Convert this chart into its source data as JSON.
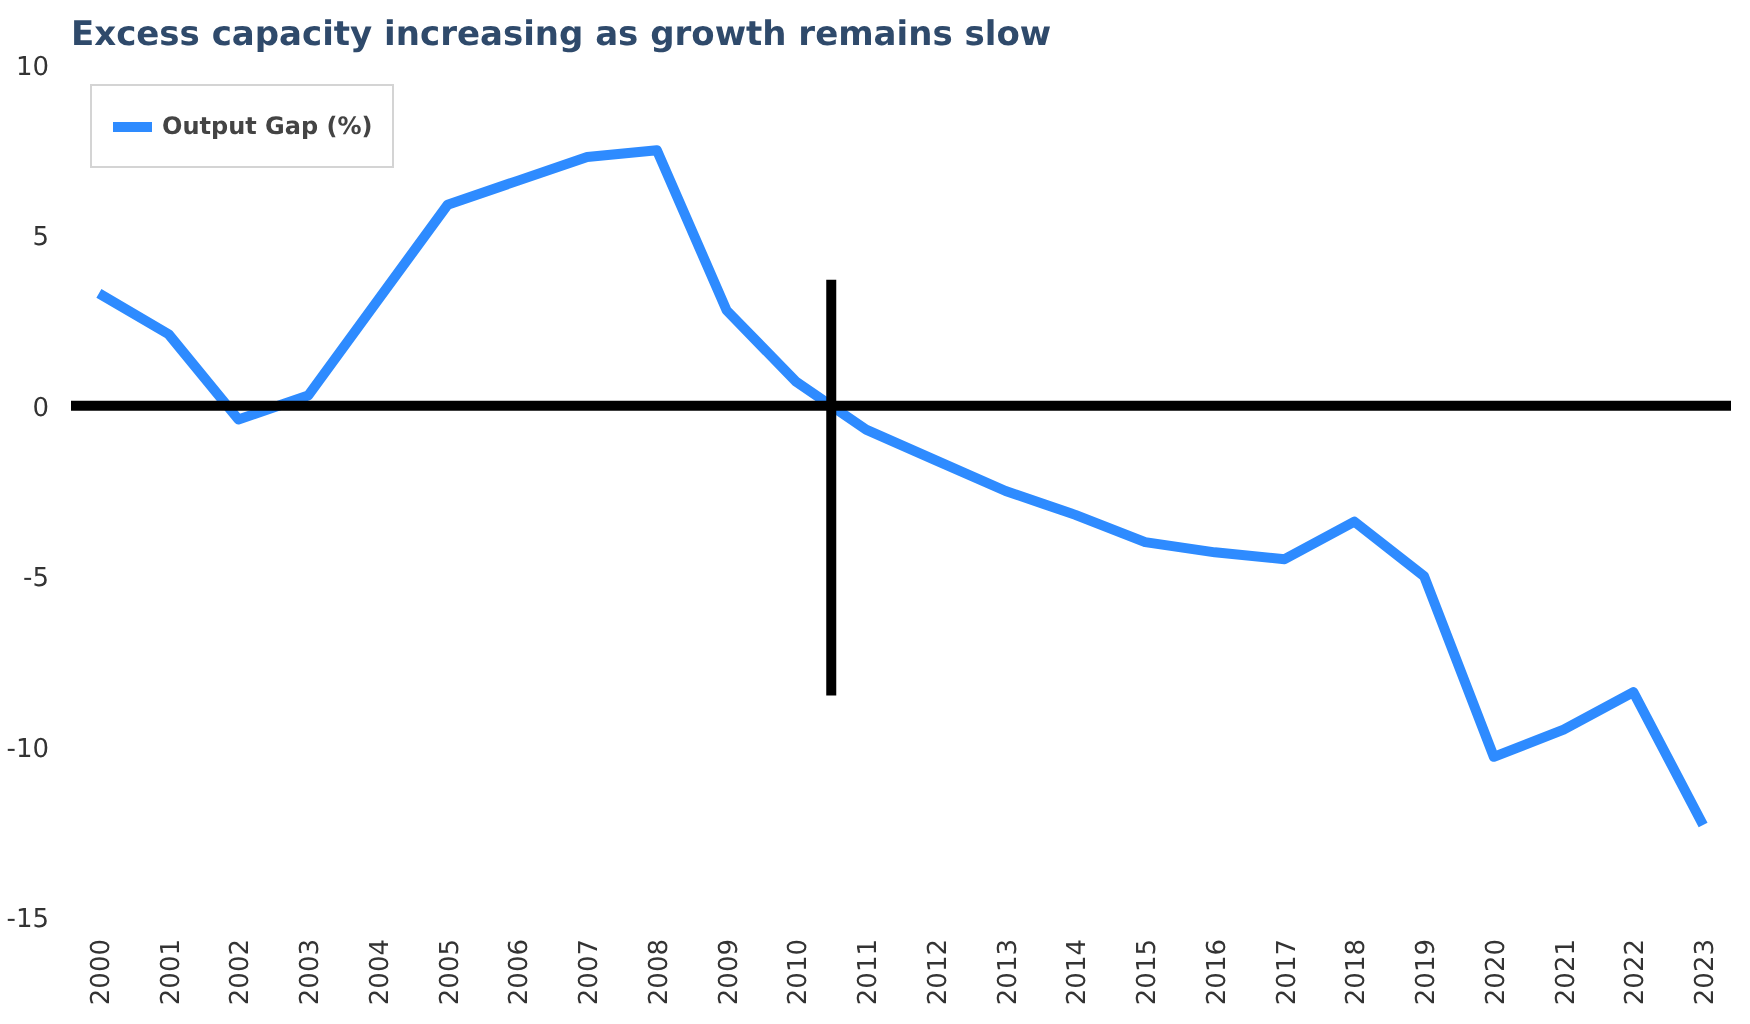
{
  "chart_data": {
    "type": "line",
    "title": "Excess capacity increasing as growth remains slow",
    "x": [
      2000,
      2001,
      2002,
      2003,
      2004,
      2005,
      2006,
      2007,
      2008,
      2009,
      2010,
      2011,
      2012,
      2013,
      2014,
      2015,
      2016,
      2017,
      2018,
      2019,
      2020,
      2021,
      2022,
      2023
    ],
    "xlim": [
      1999.6,
      2023.4
    ],
    "xticks": [
      2000,
      2001,
      2002,
      2003,
      2004,
      2005,
      2006,
      2007,
      2008,
      2009,
      2010,
      2011,
      2012,
      2013,
      2014,
      2015,
      2016,
      2017,
      2018,
      2019,
      2020,
      2021,
      2022,
      2023
    ],
    "ylim": [
      -15,
      10
    ],
    "yticks": [
      -15,
      -10,
      -5,
      0,
      5,
      10
    ],
    "series": [
      {
        "name": "Output Gap (%)",
        "color": "#2e8bff",
        "values": [
          3.3,
          2.1,
          -0.4,
          0.3,
          3.1,
          5.9,
          6.6,
          7.3,
          7.5,
          2.8,
          0.7,
          -0.7,
          -1.6,
          -2.5,
          -3.2,
          -4.0,
          -4.3,
          -4.5,
          -3.4,
          -5.0,
          -10.3,
          -9.5,
          -8.4,
          -12.3
        ]
      },
      {
        "type": "line",
        "color": "#000000",
        "x": [
          2010.5,
          2010.5
        ],
        "values": [
          3.7,
          -8.5
        ]
      }
    ],
    "ref_lines": [
      {
        "axis": "y",
        "value": 0,
        "color": "#000000"
      }
    ],
    "grid": false,
    "legend": "top left",
    "line_style": "solid",
    "marker": "none"
  }
}
